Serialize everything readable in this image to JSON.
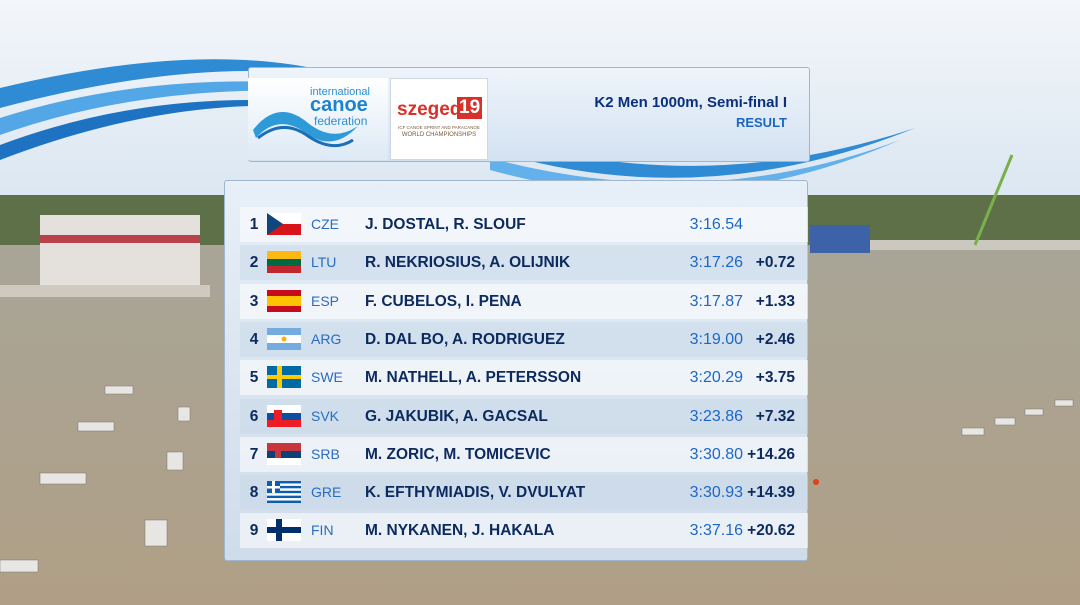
{
  "header": {
    "logos": {
      "federation": {
        "line1": "international",
        "line2": "canoe",
        "line3": "federation"
      },
      "event": {
        "name": "szeged",
        "year": "19",
        "line1": "ICF CANOE SPRINT AND PARACANOE",
        "line2": "WORLD CHAMPIONSHIPS"
      }
    },
    "title": "K2 Men 1000m, Semi-final I",
    "subtitle": "RESULT"
  },
  "table": {
    "rows": [
      [
        1,
        "CZE",
        "J. DOSTAL, R. SLOUF",
        "3:16.54",
        ""
      ],
      [
        2,
        "LTU",
        "R. NEKRIOSIUS, A. OLIJNIK",
        "3:17.26",
        "+0.72"
      ],
      [
        3,
        "ESP",
        "F. CUBELOS, I. PENA",
        "3:17.87",
        "+1.33"
      ],
      [
        4,
        "ARG",
        "D. DAL BO, A. RODRIGUEZ",
        "3:19.00",
        "+2.46"
      ],
      [
        5,
        "SWE",
        "M. NATHELL, A. PETERSSON",
        "3:20.29",
        "+3.75"
      ],
      [
        6,
        "SVK",
        "G. JAKUBIK, A. GACSAL",
        "3:23.86",
        "+7.32"
      ],
      [
        7,
        "SRB",
        "M. ZORIC, M. TOMICEVIC",
        "3:30.80",
        "+14.26"
      ],
      [
        8,
        "GRE",
        "K. EFTHYMIADIS, V. DVULYAT",
        "3:30.93",
        "+14.39"
      ],
      [
        9,
        "FIN",
        "M. NYKANEN, J. HAKALA",
        "3:37.16",
        "+20.62"
      ]
    ]
  }
}
